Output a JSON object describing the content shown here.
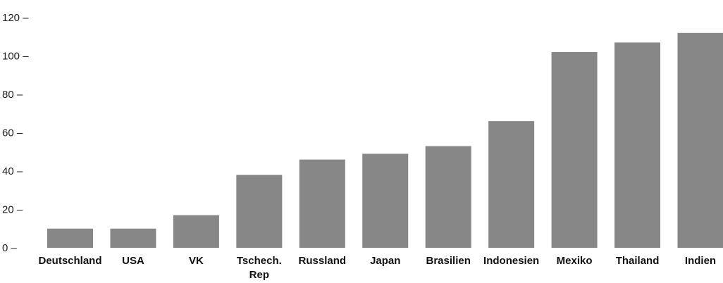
{
  "chart_data": {
    "type": "bar",
    "title": "",
    "xlabel": "",
    "ylabel": "",
    "ylim": [
      0,
      120
    ],
    "yticks": [
      0,
      20,
      40,
      60,
      80,
      100,
      120
    ],
    "grid": false,
    "bar_color": "#878788",
    "categories": [
      [
        "Deutschland"
      ],
      [
        "USA"
      ],
      [
        "VK"
      ],
      [
        "Tschech.",
        "Rep"
      ],
      [
        "Russland"
      ],
      [
        "Japan"
      ],
      [
        "Brasilien"
      ],
      [
        "Indonesien"
      ],
      [
        "Mexiko"
      ],
      [
        "Thailand"
      ],
      [
        "Indien"
      ]
    ],
    "values": [
      10,
      10,
      17,
      38,
      46,
      49,
      53,
      66,
      102,
      107,
      112
    ]
  }
}
